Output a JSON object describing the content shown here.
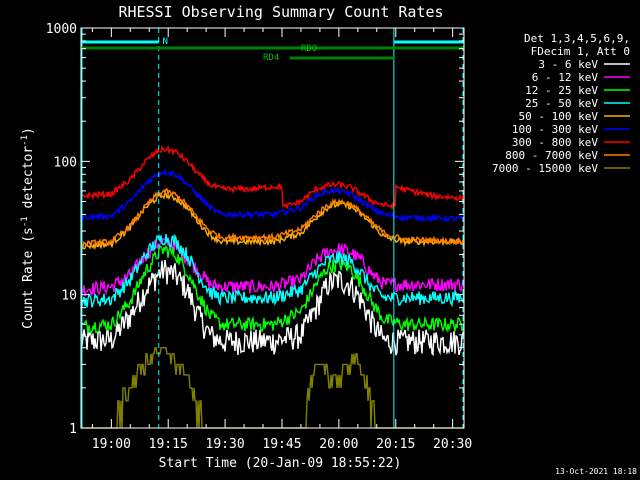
{
  "chart_data": {
    "type": "line",
    "title": "RHESSI Observing Summary Count Rates",
    "xlabel": "Start Time (20-Jan-09 18:55:22)",
    "ylabel_main": "Count Rate (s",
    "ylabel_sup1": "-1",
    "ylabel_mid": " detector",
    "ylabel_sup2": "-1",
    "ylabel_end": ")",
    "y_scale": "log",
    "xlim_min": [
      -3,
      98
    ],
    "ylim": [
      1,
      1000
    ],
    "x_ticks": [
      {
        "value": 5,
        "label": "19:00"
      },
      {
        "value": 20,
        "label": "19:15"
      },
      {
        "value": 35,
        "label": "19:30"
      },
      {
        "value": 50,
        "label": "19:45"
      },
      {
        "value": 65,
        "label": "20:00"
      },
      {
        "value": 80,
        "label": "20:15"
      },
      {
        "value": 95,
        "label": "20:30"
      }
    ],
    "y_ticks": [
      {
        "value": 1,
        "label": "1"
      },
      {
        "value": 10,
        "label": "10"
      },
      {
        "value": 100,
        "label": "100"
      },
      {
        "value": 1000,
        "label": "1000"
      }
    ],
    "legend": {
      "position": "right",
      "header": [
        "Det 1,3,4,5,6,9,",
        "FDecim 1, Att 0"
      ]
    },
    "date_stamp": "13-Oct-2021 18:18",
    "series": [
      {
        "name": "3 - 6 keV",
        "color": "#ffffff",
        "points": [
          [
            -3,
            4.5
          ],
          [
            5,
            4.6
          ],
          [
            10,
            7
          ],
          [
            14,
            11
          ],
          [
            17,
            14
          ],
          [
            19,
            15.5
          ],
          [
            22,
            14
          ],
          [
            25,
            11
          ],
          [
            28,
            7
          ],
          [
            31,
            5
          ],
          [
            34,
            4.5
          ],
          [
            48,
            4.5
          ],
          [
            55,
            5
          ],
          [
            59,
            8
          ],
          [
            62,
            12
          ],
          [
            65,
            13
          ],
          [
            68,
            12
          ],
          [
            71,
            9
          ],
          [
            74,
            6
          ],
          [
            77,
            4.5
          ],
          [
            82,
            4.5
          ],
          [
            98,
            4.5
          ]
        ]
      },
      {
        "name": "6 - 12 keV",
        "color": "#ff00ff",
        "points": [
          [
            -3,
            11
          ],
          [
            5,
            11.5
          ],
          [
            10,
            14
          ],
          [
            14,
            20
          ],
          [
            17,
            24
          ],
          [
            19,
            25
          ],
          [
            22,
            23
          ],
          [
            25,
            19
          ],
          [
            28,
            15
          ],
          [
            31,
            12
          ],
          [
            34,
            11.5
          ],
          [
            48,
            11.5
          ],
          [
            55,
            13
          ],
          [
            59,
            18
          ],
          [
            62,
            21
          ],
          [
            65,
            22
          ],
          [
            68,
            21
          ],
          [
            71,
            18
          ],
          [
            74,
            14
          ],
          [
            77,
            12
          ],
          [
            82,
            12
          ],
          [
            98,
            12
          ]
        ]
      },
      {
        "name": "12 - 25 keV",
        "color": "#00ff00",
        "points": [
          [
            -3,
            5.8
          ],
          [
            5,
            6
          ],
          [
            10,
            9
          ],
          [
            14,
            15
          ],
          [
            17,
            20
          ],
          [
            19,
            22
          ],
          [
            22,
            20
          ],
          [
            25,
            15
          ],
          [
            28,
            10
          ],
          [
            31,
            7
          ],
          [
            34,
            6
          ],
          [
            48,
            6
          ],
          [
            55,
            7.5
          ],
          [
            59,
            12
          ],
          [
            62,
            16
          ],
          [
            65,
            17
          ],
          [
            68,
            16
          ],
          [
            71,
            12
          ],
          [
            74,
            8.5
          ],
          [
            77,
            6.5
          ],
          [
            82,
            6
          ],
          [
            98,
            6
          ]
        ]
      },
      {
        "name": "25 - 50 keV",
        "color": "#00ffff",
        "points": [
          [
            -3,
            9
          ],
          [
            5,
            9.3
          ],
          [
            10,
            13
          ],
          [
            14,
            20
          ],
          [
            17,
            25
          ],
          [
            19,
            27
          ],
          [
            22,
            25
          ],
          [
            25,
            20
          ],
          [
            28,
            14
          ],
          [
            31,
            10.5
          ],
          [
            34,
            9.5
          ],
          [
            48,
            9.5
          ],
          [
            55,
            11
          ],
          [
            59,
            15
          ],
          [
            62,
            18
          ],
          [
            65,
            19
          ],
          [
            68,
            18
          ],
          [
            71,
            14.5
          ],
          [
            74,
            11
          ],
          [
            77,
            9.5
          ],
          [
            82,
            9.5
          ],
          [
            98,
            9.5
          ]
        ]
      },
      {
        "name": "50 - 100 keV",
        "color": "#ffb000",
        "points": [
          [
            -3,
            23
          ],
          [
            5,
            24
          ],
          [
            10,
            32
          ],
          [
            14,
            45
          ],
          [
            17,
            53
          ],
          [
            19,
            56
          ],
          [
            22,
            53
          ],
          [
            25,
            45
          ],
          [
            28,
            35
          ],
          [
            31,
            28
          ],
          [
            34,
            25
          ],
          [
            48,
            25
          ],
          [
            55,
            29
          ],
          [
            59,
            38
          ],
          [
            62,
            45
          ],
          [
            65,
            48
          ],
          [
            68,
            46
          ],
          [
            71,
            40
          ],
          [
            74,
            33
          ],
          [
            77,
            27
          ],
          [
            82,
            25
          ],
          [
            98,
            25
          ]
        ]
      },
      {
        "name": "100 - 300 keV",
        "color": "#0000ff",
        "points": [
          [
            -3,
            38
          ],
          [
            5,
            39
          ],
          [
            10,
            50
          ],
          [
            14,
            68
          ],
          [
            17,
            80
          ],
          [
            19,
            84
          ],
          [
            22,
            80
          ],
          [
            25,
            68
          ],
          [
            28,
            55
          ],
          [
            31,
            45
          ],
          [
            34,
            40
          ],
          [
            48,
            40
          ],
          [
            55,
            45
          ],
          [
            59,
            55
          ],
          [
            62,
            60
          ],
          [
            65,
            60
          ],
          [
            68,
            57
          ],
          [
            71,
            50
          ],
          [
            74,
            44
          ],
          [
            77,
            40
          ],
          [
            82,
            38
          ],
          [
            98,
            37
          ]
        ]
      },
      {
        "name": "300 - 800 keV",
        "color": "#ff0000",
        "points": [
          [
            -3,
            55
          ],
          [
            5,
            57
          ],
          [
            10,
            73
          ],
          [
            14,
            100
          ],
          [
            17,
            118
          ],
          [
            19,
            124
          ],
          [
            22,
            118
          ],
          [
            25,
            100
          ],
          [
            28,
            80
          ],
          [
            31,
            67
          ],
          [
            34,
            62
          ],
          [
            42,
            62
          ],
          [
            48,
            65
          ],
          [
            50,
            64
          ],
          [
            50.2,
            45
          ],
          [
            55,
            50
          ],
          [
            59,
            62
          ],
          [
            62,
            66
          ],
          [
            65,
            67
          ],
          [
            68,
            64
          ],
          [
            71,
            57
          ],
          [
            74,
            50
          ],
          [
            77,
            47
          ],
          [
            79.8,
            46
          ],
          [
            80,
            65
          ],
          [
            82,
            62
          ],
          [
            90,
            55
          ],
          [
            98,
            53
          ]
        ]
      },
      {
        "name": "800 - 7000 keV",
        "color": "#ff7f00",
        "points": [
          [
            -3,
            24
          ],
          [
            5,
            25
          ],
          [
            10,
            33
          ],
          [
            14,
            46
          ],
          [
            17,
            56
          ],
          [
            19,
            60
          ],
          [
            22,
            56
          ],
          [
            25,
            47
          ],
          [
            28,
            37
          ],
          [
            31,
            30
          ],
          [
            34,
            27
          ],
          [
            48,
            27
          ],
          [
            55,
            31
          ],
          [
            59,
            40
          ],
          [
            62,
            47
          ],
          [
            65,
            50
          ],
          [
            68,
            48
          ],
          [
            71,
            41
          ],
          [
            74,
            34
          ],
          [
            77,
            29
          ],
          [
            82,
            26
          ],
          [
            98,
            25
          ]
        ]
      },
      {
        "name": "7000 - 15000 keV",
        "color": "#808000",
        "points": [
          [
            -3,
            1
          ],
          [
            5,
            1
          ],
          [
            7,
            1.6
          ],
          [
            9,
            2
          ],
          [
            11,
            2.5
          ],
          [
            13,
            3
          ],
          [
            15,
            3.6
          ],
          [
            17,
            4
          ],
          [
            19,
            4
          ],
          [
            21,
            3.6
          ],
          [
            23,
            3
          ],
          [
            25,
            2.5
          ],
          [
            27,
            1.8
          ],
          [
            29,
            1.2
          ],
          [
            31,
            1
          ],
          [
            55,
            1
          ],
          [
            57,
            2
          ],
          [
            59,
            3
          ],
          [
            61,
            3
          ],
          [
            63,
            2.5
          ],
          [
            65,
            2.5
          ],
          [
            67,
            3
          ],
          [
            69,
            3.6
          ],
          [
            71,
            3
          ],
          [
            73,
            2
          ],
          [
            75,
            1
          ],
          [
            98,
            1
          ]
        ]
      }
    ],
    "annotations": {
      "attenuator_label": "N",
      "rd_labels": [
        "RDO",
        "RD4"
      ]
    }
  }
}
